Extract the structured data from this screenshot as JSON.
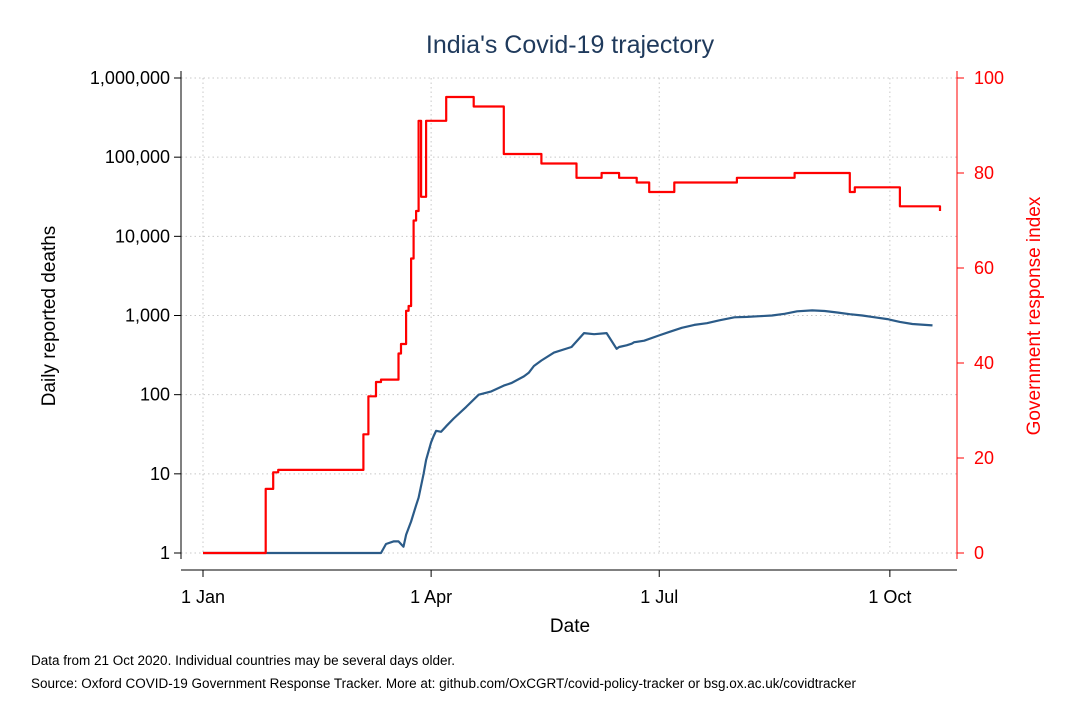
{
  "chart_data": {
    "type": "line",
    "title": "India's Covid-19 trajectory",
    "xlabel": "Date",
    "ylabel": "Daily reported deaths",
    "y2label": "Government response index",
    "x_ticks": [
      "1 Jan",
      "1 Apr",
      "1 Jul",
      "1 Oct"
    ],
    "x_tick_dates": [
      "2020-01-01",
      "2020-04-01",
      "2020-07-01",
      "2020-10-01"
    ],
    "xlim": [
      "2020-01-01",
      "2020-10-21"
    ],
    "y_scale": "log",
    "ylim": [
      1,
      1000000
    ],
    "y_ticks": [
      "1",
      "10",
      "100",
      "1,000",
      "10,000",
      "100,000",
      "1,000,000"
    ],
    "y2lim": [
      0,
      100
    ],
    "y2_ticks": [
      "0",
      "20",
      "40",
      "60",
      "80",
      "100"
    ],
    "grid": true,
    "colors": {
      "deaths": "#2b5b88",
      "index": "#ff0000",
      "axis_left": "#000000",
      "axis_right": "#ff0000",
      "title": "#1f3a5c"
    },
    "series": [
      {
        "axis": "left",
        "x": [
          "2020-01-01",
          "2020-03-12",
          "2020-03-14",
          "2020-03-17",
          "2020-03-19",
          "2020-03-21",
          "2020-03-22",
          "2020-03-24",
          "2020-03-26",
          "2020-03-27",
          "2020-03-29",
          "2020-03-30",
          "2020-04-01",
          "2020-04-02",
          "2020-04-03",
          "2020-04-05",
          "2020-04-07",
          "2020-04-10",
          "2020-04-15",
          "2020-04-20",
          "2020-04-25",
          "2020-04-30",
          "2020-05-03",
          "2020-05-08",
          "2020-05-10",
          "2020-05-12",
          "2020-05-15",
          "2020-05-20",
          "2020-05-27",
          "2020-06-01",
          "2020-06-05",
          "2020-06-10",
          "2020-06-14",
          "2020-06-15",
          "2020-06-18",
          "2020-06-20",
          "2020-06-21",
          "2020-06-25",
          "2020-07-01",
          "2020-07-05",
          "2020-07-10",
          "2020-07-15",
          "2020-07-20",
          "2020-07-25",
          "2020-07-31",
          "2020-08-05",
          "2020-08-10",
          "2020-08-15",
          "2020-08-20",
          "2020-08-25",
          "2020-08-31",
          "2020-09-05",
          "2020-09-10",
          "2020-09-15",
          "2020-09-20",
          "2020-09-25",
          "2020-09-30",
          "2020-10-05",
          "2020-10-10",
          "2020-10-15",
          "2020-10-18"
        ],
        "values": [
          1,
          1,
          1.3,
          1.4,
          1.4,
          1.2,
          1.7,
          2.5,
          4,
          5,
          10,
          15,
          25,
          30,
          35,
          34,
          40,
          50,
          70,
          100,
          110,
          130,
          140,
          170,
          190,
          230,
          270,
          340,
          400,
          600,
          580,
          600,
          380,
          400,
          420,
          440,
          460,
          480,
          560,
          620,
          700,
          760,
          800,
          870,
          950,
          960,
          980,
          1000,
          1050,
          1130,
          1160,
          1140,
          1090,
          1040,
          1000,
          950,
          900,
          830,
          780,
          760,
          750
        ]
      },
      {
        "axis": "right",
        "step": true,
        "x": [
          "2020-01-01",
          "2020-01-26",
          "2020-01-29",
          "2020-01-31",
          "2020-03-05",
          "2020-03-07",
          "2020-03-10",
          "2020-03-12",
          "2020-03-19",
          "2020-03-20",
          "2020-03-22",
          "2020-03-23",
          "2020-03-24",
          "2020-03-25",
          "2020-03-26",
          "2020-03-27",
          "2020-03-28",
          "2020-03-30",
          "2020-04-07",
          "2020-04-14",
          "2020-04-18",
          "2020-04-30",
          "2020-05-15",
          "2020-05-29",
          "2020-06-08",
          "2020-06-15",
          "2020-06-22",
          "2020-06-27",
          "2020-07-07",
          "2020-08-01",
          "2020-08-24",
          "2020-09-15",
          "2020-09-17",
          "2020-10-05",
          "2020-10-21"
        ],
        "values": [
          0,
          13.5,
          17,
          17.5,
          25,
          33,
          36,
          36.5,
          42,
          44,
          51,
          52,
          62,
          70,
          72,
          91,
          75,
          91,
          96,
          96,
          94,
          84,
          82,
          79,
          80,
          79,
          78,
          76,
          78,
          79,
          80,
          76,
          77,
          73,
          72
        ]
      }
    ]
  },
  "notes": {
    "line1": "Data from 21 Oct 2020. Individual countries may be several days older.",
    "line2": "Source: Oxford COVID-19 Government Response Tracker. More at: github.com/OxCGRT/covid-policy-tracker or bsg.ox.ac.uk/covidtracker"
  }
}
